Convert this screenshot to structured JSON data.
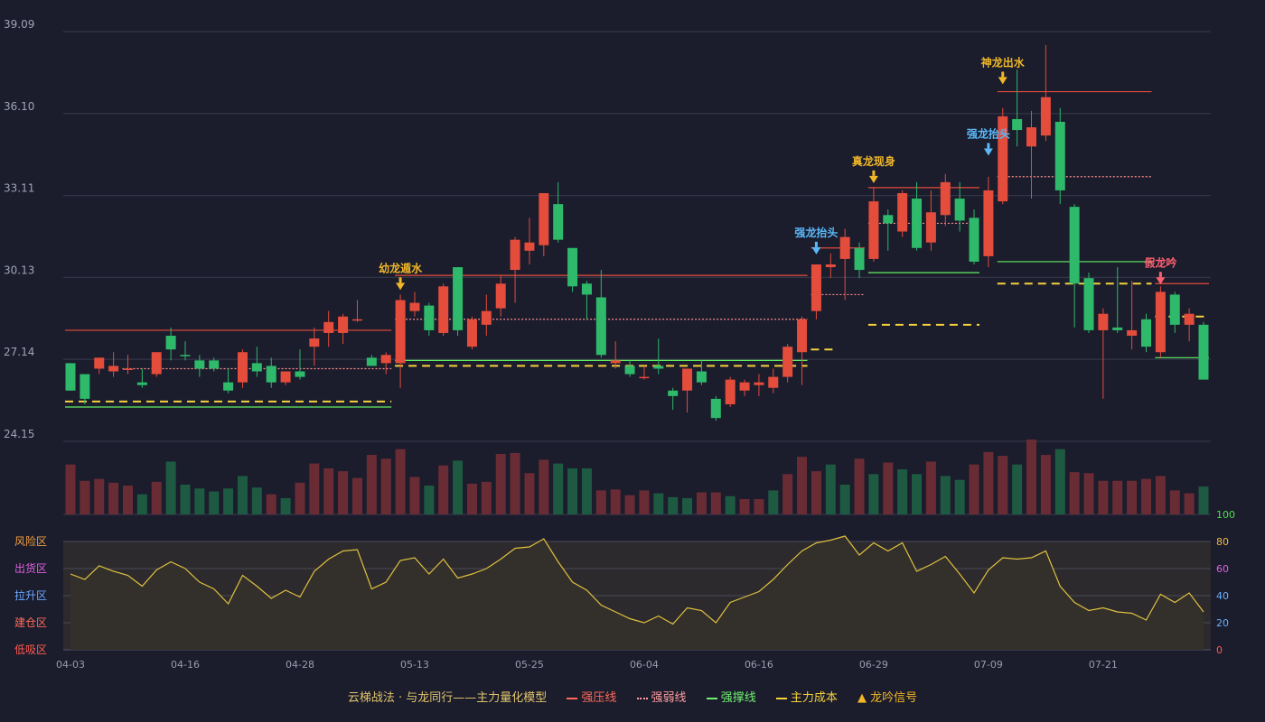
{
  "chart_data": {
    "type": "candlestick",
    "title": "云梯战法 · 与龙同行——主力量化模型",
    "price_axis": {
      "ticks": [
        "39.09",
        "36.10",
        "33.11",
        "30.13",
        "27.14",
        "24.15"
      ],
      "min": 24.15,
      "max": 39.09
    },
    "dates": [
      "04-03",
      "04-16",
      "04-28",
      "05-13",
      "05-25",
      "06-04",
      "06-16",
      "06-29",
      "07-09",
      "07-21"
    ],
    "candles": [
      [
        26.0,
        27.0,
        26.0,
        27.0,
        "up"
      ],
      [
        26.6,
        25.7,
        25.5,
        26.6,
        "up"
      ],
      [
        26.8,
        27.2,
        26.6,
        27.2,
        "down"
      ],
      [
        26.7,
        26.9,
        26.5,
        27.4,
        "down"
      ],
      [
        26.8,
        26.8,
        26.6,
        27.3,
        "down"
      ],
      [
        26.2,
        26.3,
        26.1,
        26.8,
        "up"
      ],
      [
        26.6,
        27.4,
        26.5,
        27.4,
        "down"
      ],
      [
        27.5,
        28.0,
        27.1,
        28.3,
        "up"
      ],
      [
        27.3,
        27.3,
        27.1,
        27.8,
        "up"
      ],
      [
        27.1,
        26.8,
        26.5,
        27.3,
        "up"
      ],
      [
        27.1,
        26.8,
        26.7,
        27.2,
        "up"
      ],
      [
        26.3,
        26.0,
        25.9,
        26.8,
        "up"
      ],
      [
        26.3,
        27.4,
        26.1,
        27.5,
        "down"
      ],
      [
        27.0,
        26.7,
        26.5,
        27.6,
        "up"
      ],
      [
        26.9,
        26.3,
        26.1,
        27.2,
        "up"
      ],
      [
        26.7,
        26.3,
        26.2,
        26.7,
        "down"
      ],
      [
        26.7,
        26.5,
        26.4,
        27.5,
        "up"
      ],
      [
        27.6,
        27.9,
        26.9,
        28.3,
        "down"
      ],
      [
        28.1,
        28.5,
        27.6,
        28.9,
        "down"
      ],
      [
        28.1,
        28.7,
        27.7,
        28.8,
        "down"
      ],
      [
        28.6,
        28.6,
        28.5,
        29.3,
        "down"
      ],
      [
        27.2,
        26.9,
        26.9,
        27.3,
        "up"
      ],
      [
        27.0,
        27.3,
        26.6,
        27.4,
        "down"
      ],
      [
        27.0,
        29.3,
        26.1,
        29.5,
        "down"
      ],
      [
        28.9,
        29.2,
        28.7,
        29.6,
        "down"
      ],
      [
        28.2,
        29.1,
        28.0,
        29.2,
        "up"
      ],
      [
        28.1,
        29.8,
        28.0,
        29.9,
        "down"
      ],
      [
        28.2,
        30.5,
        28.0,
        30.5,
        "up"
      ],
      [
        27.6,
        28.6,
        27.5,
        28.7,
        "down"
      ],
      [
        28.4,
        28.9,
        28.0,
        29.5,
        "down"
      ],
      [
        29.0,
        29.9,
        28.7,
        30.2,
        "down"
      ],
      [
        30.4,
        31.5,
        29.2,
        31.6,
        "down"
      ],
      [
        31.4,
        31.1,
        30.6,
        32.3,
        "down"
      ],
      [
        31.3,
        33.2,
        30.9,
        33.2,
        "down"
      ],
      [
        32.8,
        31.5,
        31.4,
        33.6,
        "up"
      ],
      [
        31.2,
        29.8,
        29.6,
        31.2,
        "up"
      ],
      [
        29.9,
        29.5,
        28.6,
        30.0,
        "up"
      ],
      [
        29.4,
        27.3,
        27.2,
        30.4,
        "up"
      ],
      [
        27.1,
        27.0,
        26.8,
        27.8,
        "down"
      ],
      [
        26.9,
        26.6,
        26.5,
        27.1,
        "up"
      ],
      [
        26.5,
        26.5,
        26.4,
        26.9,
        "down"
      ],
      [
        26.9,
        26.8,
        26.6,
        27.9,
        "up"
      ],
      [
        26.0,
        25.8,
        25.3,
        26.1,
        "up"
      ],
      [
        26.0,
        26.8,
        25.2,
        26.8,
        "down"
      ],
      [
        26.7,
        26.3,
        26.2,
        27.1,
        "up"
      ],
      [
        25.7,
        25.0,
        24.9,
        25.8,
        "up"
      ],
      [
        25.5,
        26.4,
        25.4,
        26.5,
        "down"
      ],
      [
        26.0,
        26.3,
        25.8,
        26.4,
        "down"
      ],
      [
        26.2,
        26.3,
        25.8,
        26.6,
        "down"
      ],
      [
        26.1,
        26.5,
        25.9,
        26.8,
        "down"
      ],
      [
        26.5,
        27.6,
        26.3,
        27.7,
        "down"
      ],
      [
        27.4,
        28.6,
        26.2,
        28.7,
        "down"
      ],
      [
        28.9,
        30.6,
        28.6,
        30.6,
        "down"
      ],
      [
        30.5,
        30.6,
        30.1,
        31.0,
        "down"
      ],
      [
        30.8,
        31.6,
        29.3,
        31.9,
        "down"
      ],
      [
        31.2,
        30.4,
        30.1,
        31.4,
        "up"
      ],
      [
        30.8,
        32.9,
        30.7,
        33.4,
        "down"
      ],
      [
        32.4,
        32.1,
        31.1,
        32.6,
        "up"
      ],
      [
        31.8,
        33.2,
        31.6,
        33.3,
        "down"
      ],
      [
        33.0,
        31.2,
        31.1,
        33.6,
        "up"
      ],
      [
        31.4,
        32.5,
        31.1,
        33.3,
        "down"
      ],
      [
        32.4,
        33.6,
        32.0,
        33.9,
        "down"
      ],
      [
        33.0,
        32.2,
        31.8,
        33.6,
        "up"
      ],
      [
        32.3,
        30.7,
        30.6,
        32.6,
        "up"
      ],
      [
        30.9,
        33.3,
        30.5,
        33.8,
        "down"
      ],
      [
        32.9,
        36.0,
        32.8,
        36.3,
        "down"
      ],
      [
        35.9,
        35.5,
        34.9,
        37.7,
        "up"
      ],
      [
        34.9,
        35.6,
        33.0,
        36.2,
        "down"
      ],
      [
        35.3,
        36.7,
        35.1,
        38.6,
        "down"
      ],
      [
        35.8,
        33.3,
        32.8,
        36.3,
        "up"
      ],
      [
        32.7,
        29.9,
        28.3,
        32.8,
        "up"
      ],
      [
        30.1,
        28.2,
        28.1,
        30.3,
        "up"
      ],
      [
        28.2,
        28.8,
        25.7,
        29.0,
        "down"
      ],
      [
        28.3,
        28.2,
        28.1,
        30.5,
        "up"
      ],
      [
        28.0,
        28.2,
        27.5,
        30.0,
        "down"
      ],
      [
        28.6,
        27.6,
        27.4,
        28.8,
        "up"
      ],
      [
        27.4,
        29.6,
        27.2,
        29.8,
        "down"
      ],
      [
        29.5,
        28.4,
        28.1,
        29.6,
        "up"
      ],
      [
        28.4,
        28.8,
        27.8,
        29.0,
        "down"
      ],
      [
        28.4,
        26.4,
        26.4,
        28.5,
        "up"
      ]
    ],
    "volume": [
      52,
      35,
      37,
      33,
      30,
      21,
      34,
      55,
      31,
      27,
      24,
      27,
      40,
      28,
      21,
      17,
      33,
      53,
      48,
      45,
      38,
      62,
      58,
      68,
      39,
      30,
      51,
      56,
      32,
      34,
      63,
      64,
      43,
      57,
      53,
      48,
      48,
      25,
      26,
      20,
      25,
      22,
      18,
      17,
      23,
      23,
      19,
      16,
      16,
      25,
      42,
      60,
      45,
      52,
      31,
      58,
      42,
      54,
      47,
      42,
      55,
      40,
      36,
      52,
      65,
      61,
      52,
      78,
      62,
      68,
      44,
      43,
      35,
      35,
      35,
      37,
      40,
      25,
      22,
      29
    ],
    "volume_dir": [
      "u",
      "u",
      "u",
      "u",
      "u",
      "d",
      "u",
      "d",
      "d",
      "d",
      "d",
      "d",
      "d",
      "d",
      "u",
      "d",
      "u",
      "u",
      "u",
      "u",
      "u",
      "u",
      "u",
      "u",
      "u",
      "d",
      "u",
      "d",
      "u",
      "u",
      "u",
      "u",
      "u",
      "u",
      "d",
      "d",
      "d",
      "u",
      "u",
      "u",
      "u",
      "d",
      "d",
      "d",
      "u",
      "u",
      "d",
      "u",
      "u",
      "d",
      "u",
      "u",
      "u",
      "d",
      "d",
      "u",
      "d",
      "u",
      "d",
      "d",
      "u",
      "d",
      "d",
      "u",
      "u",
      "u",
      "d",
      "u",
      "u",
      "d",
      "u",
      "u",
      "u",
      "u",
      "u",
      "u",
      "u",
      "u",
      "u",
      "d"
    ],
    "indicator": [
      56,
      52,
      62,
      58,
      55,
      47,
      59,
      65,
      60,
      50,
      45,
      34,
      55,
      47,
      38,
      44,
      39,
      58,
      67,
      73,
      74,
      45,
      50,
      66,
      68,
      56,
      67,
      53,
      56,
      60,
      67,
      75,
      76,
      82,
      65,
      50,
      44,
      33,
      28,
      23,
      20,
      25,
      19,
      31,
      29,
      20,
      35,
      39,
      43,
      52,
      63,
      73,
      79,
      81,
      84,
      70,
      79,
      73,
      79,
      58,
      63,
      69,
      56,
      42,
      59,
      68,
      67,
      68,
      73,
      47,
      35,
      29,
      31,
      28,
      27,
      22,
      41,
      35,
      42,
      28
    ],
    "indicator_axis": {
      "ticks": [
        "0",
        "20",
        "40",
        "60",
        "80",
        "100"
      ],
      "zones": [
        "风险区",
        "出货区",
        "拉升区",
        "建仓区",
        "低吸区"
      ]
    },
    "annotations": [
      {
        "text": "幼龙遁水",
        "index": 23,
        "price": 29.7,
        "color": "#f0b828"
      },
      {
        "text": "强龙抬头",
        "index": 52,
        "price": 31.0,
        "color": "#5ab8f8"
      },
      {
        "text": "真龙现身",
        "index": 56,
        "price": 33.6,
        "color": "#f0b828"
      },
      {
        "text": "强龙抬头",
        "index": 64,
        "price": 34.6,
        "color": "#5ab8f8"
      },
      {
        "text": "神龙出水",
        "index": 65,
        "price": 37.2,
        "color": "#f0b828"
      },
      {
        "text": "假龙吟",
        "index": 76,
        "price": 29.9,
        "color": "#ff6070"
      }
    ],
    "levels": [
      {
        "type": "pressure",
        "from": 0,
        "to": 22,
        "price": 28.2
      },
      {
        "type": "weak",
        "from": 4,
        "to": 22,
        "price": 26.8
      },
      {
        "type": "cost",
        "from": 0,
        "to": 22,
        "price": 25.6
      },
      {
        "type": "support",
        "from": 0,
        "to": 22,
        "price": 25.4
      },
      {
        "type": "pressure",
        "from": 23,
        "to": 51,
        "price": 30.2
      },
      {
        "type": "weak",
        "from": 23,
        "to": 51,
        "price": 28.6
      },
      {
        "type": "support",
        "from": 23,
        "to": 51,
        "price": 27.1
      },
      {
        "type": "cost",
        "from": 23,
        "to": 51,
        "price": 26.9
      },
      {
        "type": "pressure",
        "from": 52,
        "to": 55,
        "price": 31.2
      },
      {
        "type": "weak",
        "from": 52,
        "to": 55,
        "price": 29.5
      },
      {
        "type": "cost",
        "from": 52,
        "to": 53,
        "price": 27.5
      },
      {
        "type": "pressure",
        "from": 56,
        "to": 63,
        "price": 33.4
      },
      {
        "type": "weak",
        "from": 56,
        "to": 63,
        "price": 32.1
      },
      {
        "type": "support",
        "from": 56,
        "to": 63,
        "price": 30.3
      },
      {
        "type": "cost",
        "from": 56,
        "to": 63,
        "price": 28.4
      },
      {
        "type": "pressure",
        "from": 65,
        "to": 75,
        "price": 36.9
      },
      {
        "type": "weak",
        "from": 65,
        "to": 75,
        "price": 33.8
      },
      {
        "type": "support",
        "from": 65,
        "to": 75,
        "price": 30.7
      },
      {
        "type": "cost",
        "from": 65,
        "to": 75,
        "price": 29.9
      },
      {
        "type": "pressure",
        "from": 76,
        "to": 79,
        "price": 29.9
      },
      {
        "type": "support",
        "from": 76,
        "to": 79,
        "price": 27.2
      },
      {
        "type": "cost",
        "from": 76,
        "to": 79,
        "price": 28.7
      }
    ],
    "colors": {
      "up_candle": "#2eba6a",
      "down_candle": "#e44c3c",
      "pressure": "#e44c3c",
      "weak": "#ff8e8e",
      "support": "#62f062",
      "cost": "#f5d23c",
      "indicator_line": "#e0c040",
      "grid": "#3a3c50"
    },
    "legend": [
      {
        "label": "云梯战法 · 与龙同行——主力量化模型",
        "color": "#e0c46c",
        "kind": "text"
      },
      {
        "label": "强压线",
        "color": "#ff6a5a",
        "kind": "solid"
      },
      {
        "label": "强弱线",
        "color": "#ff9e9e",
        "kind": "dotted"
      },
      {
        "label": "强撑线",
        "color": "#72f072",
        "kind": "solid"
      },
      {
        "label": "主力成本",
        "color": "#f5d23c",
        "kind": "dashed"
      },
      {
        "label": "龙吟信号",
        "color": "#f0b828",
        "kind": "triangle"
      }
    ]
  }
}
